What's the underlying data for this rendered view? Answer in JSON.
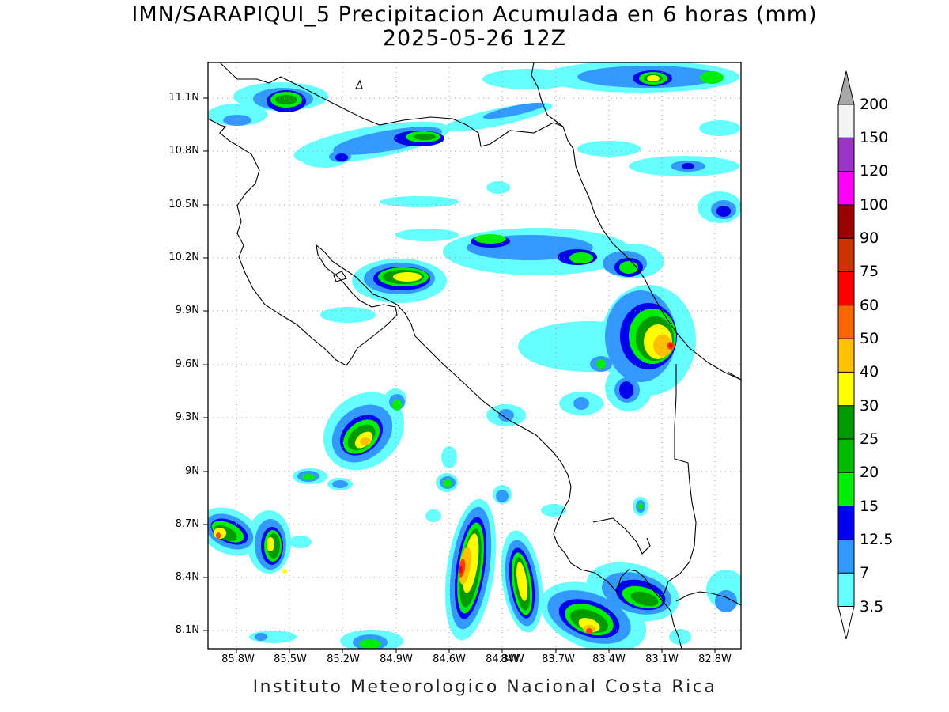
{
  "title_line1": "IMN/SARAPIQUI_5 Precipitacion Acumulada en 6 horas (mm)",
  "title_line2": "2025-05-26 12Z",
  "footer": "Instituto Meteorologico Nacional Costa Rica",
  "lat_labels": [
    "11.1N",
    "10.8N",
    "10.5N",
    "10.2N",
    "9.9N",
    "9.6N",
    "9.3N",
    "9N",
    "8.7N",
    "8.4N",
    "8.1N"
  ],
  "lon_labels": [
    "85.8W",
    "85.5W",
    "85.2W",
    "84.9W",
    "84.6W",
    "84.3W",
    "84W",
    "83.7W",
    "83.4W",
    "83.1W",
    "82.8W"
  ],
  "colorbar": {
    "labels": [
      "200",
      "150",
      "120",
      "100",
      "90",
      "75",
      "60",
      "50",
      "40",
      "30",
      "25",
      "20",
      "15",
      "12.5",
      "7",
      "3.5"
    ],
    "colors": [
      "#f4f4f4",
      "#9b35c8",
      "#ff00ff",
      "#990000",
      "#cc3300",
      "#ff0000",
      "#ff6600",
      "#ffc000",
      "#ffff00",
      "#009900",
      "#00bb00",
      "#00ee00",
      "#0000ee",
      "#3399ff",
      "#66ffff"
    ],
    "over_color": "#a8a8a8"
  }
}
